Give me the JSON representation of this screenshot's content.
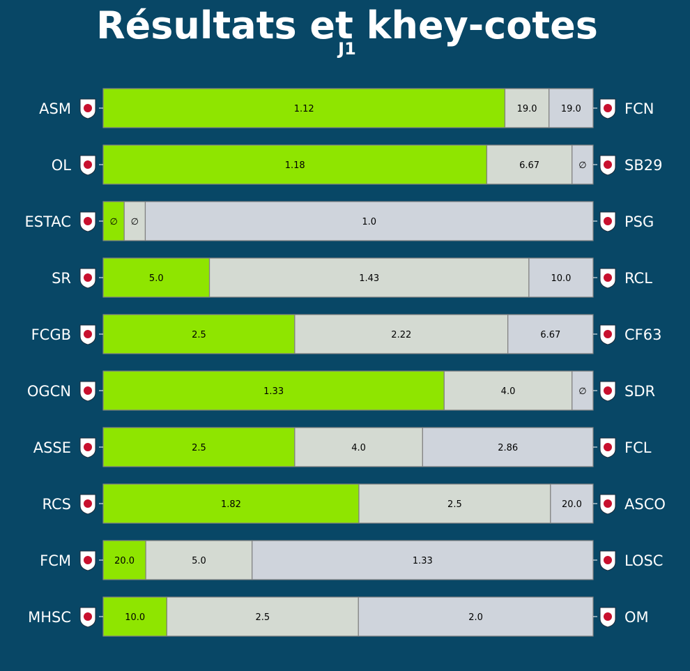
{
  "chart_data": {
    "type": "bar",
    "title": "Résultats et khey-cotes",
    "subtitle": "J1",
    "colors": {
      "background": "#084766",
      "home": "#8fe500",
      "draw": "#d4dad2",
      "away": "#cfd4dc",
      "segment_border": "#808080",
      "label_text": "#ffffff",
      "value_text": "#000000"
    },
    "matches": [
      {
        "home": "ASM",
        "away": "FCN",
        "home_logo": "monaco-crest-icon",
        "away_logo": "nantes-crest-icon",
        "shares": [
          0.82,
          0.09,
          0.09
        ],
        "labels": [
          "1.12",
          "19.0",
          "19.0"
        ]
      },
      {
        "home": "OL",
        "away": "SB29",
        "home_logo": "lyon-crest-icon",
        "away_logo": "brest-crest-icon",
        "shares": [
          0.783,
          0.174,
          0.043
        ],
        "labels": [
          "1.18",
          "6.67",
          "∅"
        ]
      },
      {
        "home": "ESTAC",
        "away": "PSG",
        "home_logo": "troyes-crest-icon",
        "away_logo": "psg-crest-icon",
        "shares": [
          0.043,
          0.043,
          0.914
        ],
        "labels": [
          "∅",
          "∅",
          "1.0"
        ]
      },
      {
        "home": "SR",
        "away": "RCL",
        "home_logo": "rennes-crest-icon",
        "away_logo": "lens-crest-icon",
        "shares": [
          0.217,
          0.652,
          0.131
        ],
        "labels": [
          "5.0",
          "1.43",
          "10.0"
        ]
      },
      {
        "home": "FCGB",
        "away": "CF63",
        "home_logo": "bordeaux-crest-icon",
        "away_logo": "clermont-crest-icon",
        "shares": [
          0.391,
          0.435,
          0.174
        ],
        "labels": [
          "2.5",
          "2.22",
          "6.67"
        ]
      },
      {
        "home": "OGCN",
        "away": "SDR",
        "home_logo": "nice-crest-icon",
        "away_logo": "reims-crest-icon",
        "shares": [
          0.696,
          0.261,
          0.043
        ],
        "labels": [
          "1.33",
          "4.0",
          "∅"
        ]
      },
      {
        "home": "ASSE",
        "away": "FCL",
        "home_logo": "saint-etienne-crest-icon",
        "away_logo": "lorient-crest-icon",
        "shares": [
          0.391,
          0.261,
          0.348
        ],
        "labels": [
          "2.5",
          "4.0",
          "2.86"
        ]
      },
      {
        "home": "RCS",
        "away": "ASCO",
        "home_logo": "strasbourg-crest-icon",
        "away_logo": "angers-crest-icon",
        "shares": [
          0.522,
          0.391,
          0.087
        ],
        "labels": [
          "1.82",
          "2.5",
          "20.0"
        ]
      },
      {
        "home": "FCM",
        "away": "LOSC",
        "home_logo": "metz-crest-icon",
        "away_logo": "lille-crest-icon",
        "shares": [
          0.087,
          0.217,
          0.696
        ],
        "labels": [
          "20.0",
          "5.0",
          "1.33"
        ]
      },
      {
        "home": "MHSC",
        "away": "OM",
        "home_logo": "montpellier-crest-icon",
        "away_logo": "marseille-crest-icon",
        "shares": [
          0.13,
          0.391,
          0.479
        ],
        "labels": [
          "10.0",
          "2.5",
          "2.0"
        ]
      }
    ]
  }
}
